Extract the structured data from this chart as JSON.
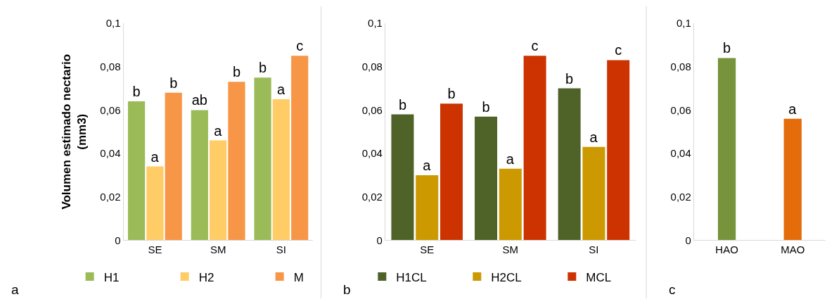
{
  "chart_data": [
    {
      "type": "bar",
      "ylabel": "Volumen estimado nectario\n(mm3)",
      "categories": [
        "SE",
        "SM",
        "SI"
      ],
      "series": [
        {
          "name": "H1",
          "color": "#9bbb59",
          "values": [
            0.064,
            0.06,
            0.075
          ],
          "value_labels": [
            "b",
            "ab",
            "b"
          ]
        },
        {
          "name": "H2",
          "color": "#ffcc66",
          "values": [
            0.034,
            0.046,
            0.065
          ],
          "value_labels": [
            "a",
            "a",
            "a"
          ]
        },
        {
          "name": "M",
          "color": "#f79646",
          "values": [
            0.068,
            0.073,
            0.085
          ],
          "value_labels": [
            "b",
            "b",
            "c"
          ]
        }
      ],
      "ylim": [
        0,
        0.1
      ],
      "yticks": [
        0,
        {
          "value": 0.02,
          "label": "0,02"
        },
        {
          "value": 0.04,
          "label": "0,04"
        },
        {
          "value": 0.06,
          "label": "0,06"
        },
        {
          "value": 0.08,
          "label": "0,08"
        },
        {
          "value": 0.1,
          "label": "0,1"
        }
      ],
      "legend": "bottom",
      "annotations": [
        "a"
      ]
    },
    {
      "type": "bar",
      "categories": [
        "SE",
        "SM",
        "SI"
      ],
      "series": [
        {
          "name": "H1CL",
          "color": "#4f6228",
          "values": [
            0.058,
            0.057,
            0.07
          ],
          "value_labels": [
            "b",
            "b",
            "b"
          ]
        },
        {
          "name": "H2CL",
          "color": "#cc9900",
          "values": [
            0.03,
            0.033,
            0.043
          ],
          "value_labels": [
            "a",
            "a",
            "a"
          ]
        },
        {
          "name": "MCL",
          "color": "#cc3300",
          "values": [
            0.063,
            0.085,
            0.083
          ],
          "value_labels": [
            "b",
            "c",
            "c"
          ]
        }
      ],
      "ylim": [
        0,
        0.1
      ],
      "yticks": [
        0,
        {
          "value": 0.02,
          "label": "0,02"
        },
        {
          "value": 0.04,
          "label": "0,04"
        },
        {
          "value": 0.06,
          "label": "0,06"
        },
        {
          "value": 0.08,
          "label": "0,08"
        },
        {
          "value": 0.1,
          "label": "0,1"
        }
      ],
      "legend": "bottom",
      "annotations": [
        "b"
      ]
    },
    {
      "type": "bar",
      "categories": [
        "HAO",
        "MAO"
      ],
      "values": [
        0.084,
        0.056
      ],
      "colors": [
        "#77933c",
        "#e46c0a"
      ],
      "value_labels": [
        "b",
        "a"
      ],
      "ylim": [
        0,
        0.1
      ],
      "yticks": [
        0,
        {
          "value": 0.02,
          "label": "0,02"
        },
        {
          "value": 0.04,
          "label": "0,04"
        },
        {
          "value": 0.06,
          "label": "0,06"
        },
        {
          "value": 0.08,
          "label": "0,08"
        },
        {
          "value": 0.1,
          "label": "0,1"
        }
      ],
      "annotations": [
        "c"
      ]
    }
  ]
}
